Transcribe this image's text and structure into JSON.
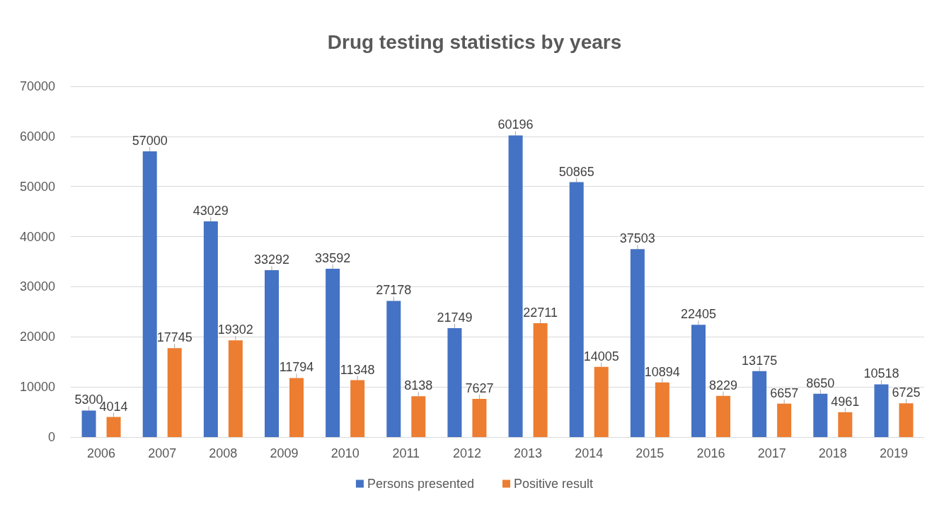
{
  "chart_data": {
    "type": "bar",
    "title": "Drug testing statistics by years",
    "categories": [
      "2006",
      "2007",
      "2008",
      "2009",
      "2010",
      "2011",
      "2012",
      "2013",
      "2014",
      "2015",
      "2016",
      "2017",
      "2018",
      "2019"
    ],
    "series": [
      {
        "name": "Persons presented",
        "color": "#4472c4",
        "values": [
          5300,
          57000,
          43029,
          33292,
          33592,
          27178,
          21749,
          60196,
          50865,
          37503,
          22405,
          13175,
          8650,
          10518
        ]
      },
      {
        "name": "Positive result",
        "color": "#ed7d31",
        "values": [
          4014,
          17745,
          19302,
          11794,
          11348,
          8138,
          7627,
          22711,
          14005,
          10894,
          8229,
          6657,
          4961,
          6725
        ]
      }
    ],
    "ylim": [
      0,
      70000
    ],
    "yticks": [
      0,
      10000,
      20000,
      30000,
      40000,
      50000,
      60000,
      70000
    ],
    "grid": "y",
    "legend": "bottom",
    "data_labels": true
  }
}
